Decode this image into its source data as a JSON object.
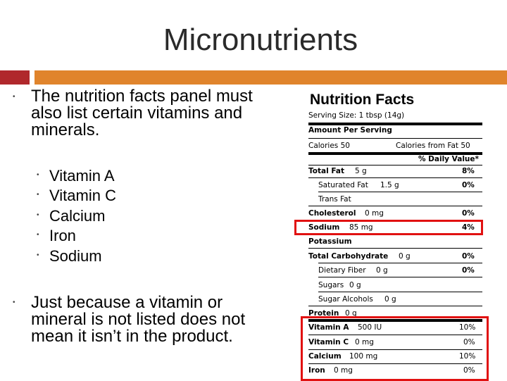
{
  "slide": {
    "title": "Micronutrients",
    "bullet_main": "The nutrition facts panel must also list certain vitamins and minerals.",
    "sub_items": [
      "Vitamin A",
      "Vitamin C",
      "Calcium",
      "Iron",
      "Sodium"
    ],
    "bullet_second": "Just because a vitamin or mineral is not listed does not mean it isn’t in the product."
  },
  "panel": {
    "title": "Nutrition Facts",
    "serving_size": "Serving Size: 1 tbsp (14g)",
    "amount_per_serving": "Amount Per Serving",
    "calories": "Calories  50",
    "calories_from_fat": "Calories from Fat  50",
    "daily_value_header": "% Daily Value*",
    "rows": [
      {
        "label": "Total Fat",
        "amount": "5 g",
        "dv": "8%"
      },
      {
        "label": "Saturated Fat",
        "amount": "1.5 g",
        "dv": "0%"
      },
      {
        "label": "Trans Fat",
        "amount": "",
        "dv": ""
      },
      {
        "label": "Cholesterol",
        "amount": "0 mg",
        "dv": "0%"
      },
      {
        "label": "Sodium",
        "amount": "85 mg",
        "dv": "4%"
      },
      {
        "label": "Potassium",
        "amount": "",
        "dv": ""
      },
      {
        "label": "Total Carbohydrate",
        "amount": "0 g",
        "dv": "0%"
      },
      {
        "label": "Dietary Fiber",
        "amount": "0 g",
        "dv": "0%"
      },
      {
        "label": "Sugars",
        "amount": "0 g",
        "dv": ""
      },
      {
        "label": "Sugar Alcohols",
        "amount": "0 g",
        "dv": ""
      },
      {
        "label": "Protein",
        "amount": "0 g",
        "dv": ""
      }
    ],
    "vitamins": [
      {
        "label": "Vitamin A",
        "amount": "500 IU",
        "dv": "10%"
      },
      {
        "label": "Vitamin C",
        "amount": "0 mg",
        "dv": "0%"
      },
      {
        "label": "Calcium",
        "amount": "100 mg",
        "dv": "10%"
      },
      {
        "label": "Iron",
        "amount": "0 mg",
        "dv": "0%"
      }
    ],
    "highlight_color": "#e11111"
  }
}
